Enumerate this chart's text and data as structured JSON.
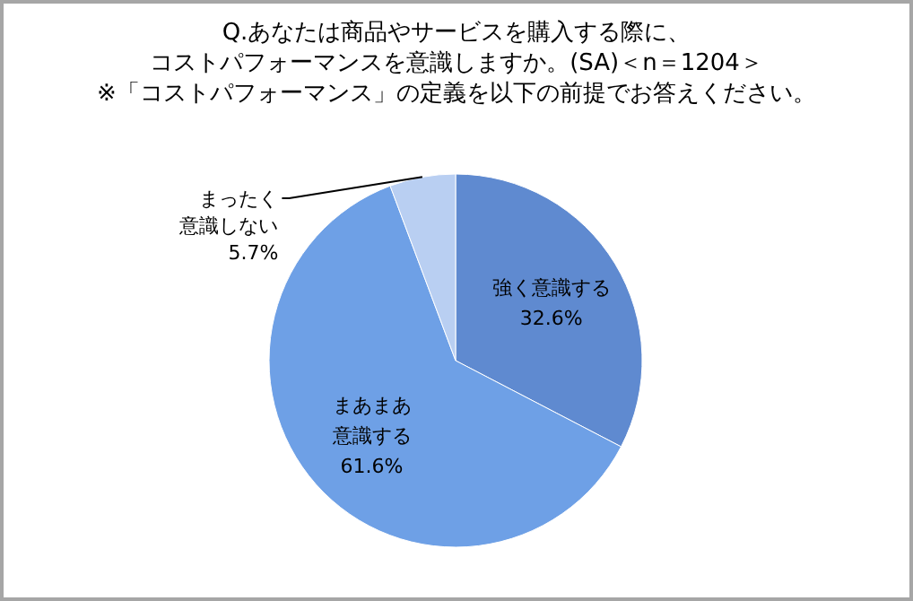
{
  "chart_data": {
    "type": "pie",
    "title": "Q.あなたは商品やサービスを購入する際に、コストパフォーマンスを意識しますか。(SA)＜n＝1204＞",
    "subtitle": "※「コストパフォーマンス」の定義を以下の前提でお答えください。",
    "categories": [
      "強く意識する",
      "まあまあ意識する",
      "まったく意識しない"
    ],
    "values": [
      32.6,
      61.6,
      5.7
    ],
    "value_labels": [
      "32.6%",
      "61.6%",
      "5.7%"
    ],
    "colors": [
      "#5f8ad0",
      "#6ea0e6",
      "#b9cff2"
    ],
    "legend": false
  }
}
